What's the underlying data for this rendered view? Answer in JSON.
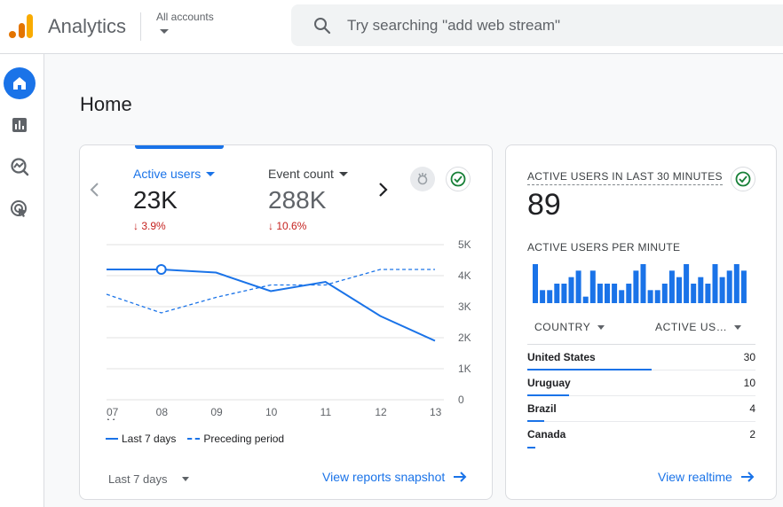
{
  "app": {
    "title": "Analytics"
  },
  "account": {
    "label": "All accounts"
  },
  "search": {
    "placeholder": "Try searching \"add web stream\""
  },
  "sidebar": {
    "items": [
      {
        "name": "home",
        "icon": "home-icon",
        "active": true
      },
      {
        "name": "reports",
        "icon": "bar-chart-icon",
        "active": false
      },
      {
        "name": "explore",
        "icon": "explore-icon",
        "active": false
      },
      {
        "name": "advertising",
        "icon": "advertising-icon",
        "active": false
      }
    ]
  },
  "page": {
    "title": "Home"
  },
  "overview": {
    "metrics": [
      {
        "label": "Active users",
        "value": "23K",
        "delta": "3.9%",
        "selected": true
      },
      {
        "label": "Event count",
        "value": "288K",
        "delta": "10.6%",
        "selected": false
      }
    ],
    "date_range": "Last 7 days",
    "snapshot_link": "View reports snapshot"
  },
  "chart_data": {
    "type": "line",
    "x": [
      "07",
      "08",
      "09",
      "10",
      "11",
      "12",
      "13"
    ],
    "x_sublabel": "May",
    "y_ticks": [
      "0",
      "1K",
      "2K",
      "3K",
      "4K",
      "5K"
    ],
    "ylim": [
      0,
      5000
    ],
    "grid": true,
    "legend_position": "bottom-left",
    "series": [
      {
        "name": "Last 7 days",
        "style": "solid",
        "color": "#1a73e8",
        "values": [
          4200,
          4200,
          4100,
          3500,
          3800,
          2700,
          1900
        ]
      },
      {
        "name": "Preceding period",
        "style": "dashed",
        "color": "#1a73e8",
        "values": [
          3400,
          2800,
          3300,
          3700,
          3700,
          4200,
          4200
        ]
      }
    ],
    "highlight_index": 1
  },
  "realtime": {
    "title": "ACTIVE USERS IN LAST 30 MINUTES",
    "count": "89",
    "per_minute_label": "ACTIVE USERS PER MINUTE",
    "per_minute": [
      6,
      2,
      2,
      3,
      3,
      4,
      5,
      1,
      5,
      3,
      3,
      3,
      2,
      3,
      5,
      6,
      2,
      2,
      3,
      5,
      4,
      6,
      3,
      4,
      3,
      6,
      4,
      5,
      6,
      5
    ],
    "columns": {
      "country": "COUNTRY",
      "active": "ACTIVE US…"
    },
    "rows": [
      {
        "country": "United States",
        "value": "30",
        "share": 1.0
      },
      {
        "country": "Uruguay",
        "value": "10",
        "share": 0.333
      },
      {
        "country": "Brazil",
        "value": "4",
        "share": 0.133
      },
      {
        "country": "Canada",
        "value": "2",
        "share": 0.067
      }
    ],
    "link": "View realtime"
  },
  "colors": {
    "accent": "#1a73e8",
    "negative": "#c5221f",
    "positive": "#188038"
  }
}
